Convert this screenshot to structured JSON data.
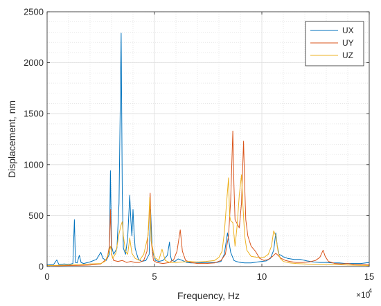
{
  "chart_data": {
    "type": "line",
    "title": "",
    "xlabel": "Frequency, Hz",
    "ylabel": "Displacement, nm",
    "x_exponent_base": "×10",
    "x_exponent_power": "4",
    "xlim": [
      0,
      150000
    ],
    "ylim": [
      0,
      2500
    ],
    "x_ticks": [
      0,
      50000,
      100000,
      150000
    ],
    "x_tick_labels": [
      "0",
      "5",
      "10",
      "15"
    ],
    "y_ticks": [
      0,
      500,
      1000,
      1500,
      2000,
      2500
    ],
    "y_tick_labels": [
      "0",
      "500",
      "1000",
      "1500",
      "2000",
      "2500"
    ],
    "grid": true,
    "minor_grid": true,
    "legend_position": "top-right",
    "series": [
      {
        "name": "UX",
        "color": "#0072BD",
        "x": [
          0,
          3000,
          4500,
          5500,
          8000,
          10000,
          12000,
          12700,
          13200,
          14000,
          15000,
          15800,
          17000,
          20000,
          23000,
          25000,
          26000,
          27500,
          29000,
          29500,
          30000,
          31000,
          32500,
          33500,
          34500,
          35000,
          35500,
          36500,
          37500,
          38500,
          39000,
          39500,
          40000,
          40500,
          41000,
          41500,
          42500,
          44000,
          46000,
          47500,
          48200,
          49000,
          50500,
          52000,
          54000,
          56000,
          57000,
          57500,
          58000,
          59500,
          61000,
          63000,
          65000,
          67000,
          70000,
          75000,
          79000,
          81000,
          82500,
          84000,
          85500,
          87000,
          88000,
          90000,
          92000,
          95000,
          98000,
          100000,
          102000,
          104000,
          105500,
          106500,
          107200,
          108000,
          109000,
          110000,
          112000,
          115000,
          118000,
          121000,
          124000,
          127000,
          130000,
          133000,
          136000,
          139000,
          142000,
          146000,
          150000
        ],
        "y": [
          15,
          20,
          65,
          20,
          25,
          20,
          30,
          460,
          40,
          35,
          110,
          40,
          30,
          45,
          70,
          140,
          80,
          60,
          120,
          940,
          200,
          120,
          180,
          620,
          2290,
          720,
          180,
          120,
          280,
          700,
          450,
          300,
          560,
          330,
          180,
          140,
          70,
          50,
          60,
          120,
          560,
          150,
          60,
          50,
          60,
          110,
          240,
          100,
          60,
          50,
          75,
          60,
          40,
          35,
          35,
          40,
          40,
          50,
          120,
          330,
          140,
          60,
          50,
          40,
          35,
          35,
          45,
          50,
          55,
          80,
          160,
          330,
          200,
          120,
          110,
          95,
          80,
          70,
          70,
          55,
          45,
          40,
          40,
          35,
          35,
          30,
          30,
          30,
          40
        ]
      },
      {
        "name": "UY",
        "color": "#D95319",
        "x": [
          0,
          5000,
          10000,
          15000,
          20000,
          25000,
          28000,
          29000,
          29500,
          30000,
          31000,
          33000,
          35000,
          37000,
          39000,
          41000,
          43000,
          45000,
          46500,
          47500,
          48000,
          48500,
          49500,
          51000,
          54000,
          57000,
          59000,
          60500,
          62000,
          63000,
          64500,
          67000,
          70000,
          74000,
          78000,
          81000,
          83000,
          84500,
          85500,
          86500,
          87000,
          87500,
          88500,
          89500,
          90500,
          91500,
          92000,
          92500,
          93500,
          95000,
          97000,
          99000,
          101000,
          103000,
          105000,
          106500,
          107500,
          109000,
          111000,
          113000,
          116000,
          119000,
          122000,
          125000,
          127000,
          128500,
          129500,
          131000,
          134000,
          137000,
          140000,
          143000,
          146000,
          150000
        ],
        "y": [
          10,
          8,
          10,
          12,
          15,
          25,
          80,
          200,
          560,
          120,
          60,
          50,
          60,
          40,
          50,
          40,
          40,
          60,
          150,
          480,
          720,
          250,
          60,
          40,
          30,
          40,
          70,
          150,
          360,
          150,
          60,
          40,
          30,
          30,
          35,
          60,
          120,
          300,
          650,
          1330,
          800,
          460,
          420,
          380,
          620,
          1230,
          800,
          460,
          300,
          200,
          150,
          80,
          60,
          70,
          100,
          130,
          110,
          80,
          60,
          50,
          40,
          40,
          45,
          60,
          90,
          160,
          100,
          50,
          30,
          25,
          30,
          20,
          20,
          15
        ]
      },
      {
        "name": "UZ",
        "color": "#EDB120",
        "x": [
          0,
          5000,
          10000,
          15000,
          20000,
          25000,
          27000,
          28500,
          29500,
          30500,
          32000,
          33500,
          34500,
          35000,
          35500,
          36500,
          37500,
          38500,
          39500,
          41000,
          43000,
          45000,
          47000,
          47800,
          48500,
          50000,
          52000,
          53500,
          55000,
          57000,
          60000,
          63000,
          66000,
          70000,
          74000,
          78000,
          80000,
          81500,
          82500,
          83500,
          84500,
          85000,
          85500,
          86500,
          87500,
          88500,
          89500,
          90500,
          91200,
          92000,
          93000,
          95000,
          98000,
          101000,
          103000,
          104500,
          105500,
          106500,
          107500,
          108500,
          110000,
          113000,
          116000,
          120000,
          125000,
          130000,
          135000,
          140000,
          145000,
          150000
        ],
        "y": [
          10,
          12,
          15,
          18,
          25,
          30,
          50,
          120,
          200,
          80,
          130,
          320,
          410,
          440,
          300,
          150,
          120,
          280,
          130,
          80,
          60,
          120,
          300,
          680,
          250,
          90,
          60,
          170,
          60,
          40,
          40,
          45,
          50,
          45,
          50,
          60,
          90,
          150,
          330,
          600,
          870,
          500,
          450,
          430,
          200,
          400,
          700,
          900,
          600,
          300,
          160,
          100,
          90,
          90,
          120,
          200,
          350,
          300,
          150,
          80,
          50,
          35,
          30,
          25,
          20,
          20,
          18,
          15,
          12,
          10
        ]
      }
    ]
  }
}
